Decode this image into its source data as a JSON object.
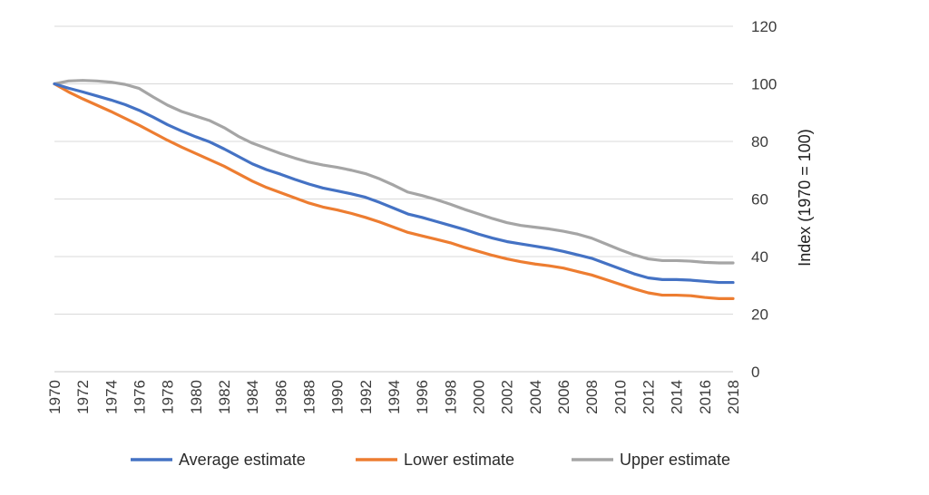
{
  "chart_data": {
    "type": "line",
    "title": "",
    "xlabel": "",
    "ylabel": "Index (1970 = 100)",
    "xlim": [
      1970,
      2018
    ],
    "ylim": [
      0,
      120
    ],
    "y_ticks": [
      0,
      20,
      40,
      60,
      80,
      100,
      120
    ],
    "x_ticks": [
      "1970",
      "1972",
      "1974",
      "1976",
      "1978",
      "1980",
      "1982",
      "1984",
      "1986",
      "1988",
      "1990",
      "1992",
      "1994",
      "1996",
      "1998",
      "2000",
      "2002",
      "2004",
      "2006",
      "2008",
      "2010",
      "2012",
      "2014",
      "2016",
      "2018"
    ],
    "y_axis_side": "right",
    "grid": "horizontal",
    "legend_position": "bottom",
    "x": [
      1970,
      1971,
      1972,
      1973,
      1974,
      1975,
      1976,
      1977,
      1978,
      1979,
      1980,
      1981,
      1982,
      1983,
      1984,
      1985,
      1986,
      1987,
      1988,
      1989,
      1990,
      1991,
      1992,
      1993,
      1994,
      1995,
      1996,
      1997,
      1998,
      1999,
      2000,
      2001,
      2002,
      2003,
      2004,
      2005,
      2006,
      2007,
      2008,
      2009,
      2010,
      2011,
      2012,
      2013,
      2014,
      2015,
      2016,
      2017,
      2018
    ],
    "series": [
      {
        "name": "Average estimate",
        "color": "#4472c4",
        "values": [
          100,
          98.5,
          97.2,
          95.8,
          94.4,
          92.8,
          90.8,
          88.4,
          85.8,
          83.6,
          81.6,
          79.8,
          77.4,
          74.8,
          72.2,
          70.2,
          68.6,
          66.8,
          65.2,
          63.8,
          62.8,
          61.8,
          60.6,
          58.8,
          56.8,
          54.8,
          53.6,
          52.2,
          50.8,
          49.4,
          47.8,
          46.4,
          45.2,
          44.4,
          43.6,
          42.8,
          41.8,
          40.6,
          39.4,
          37.6,
          35.8,
          34.0,
          32.6,
          32.0,
          32.0,
          31.8,
          31.4,
          31.0,
          31.0
        ]
      },
      {
        "name": "Lower estimate",
        "color": "#ed7d31",
        "values": [
          100,
          97.2,
          94.8,
          92.6,
          90.4,
          88.0,
          85.6,
          83.0,
          80.4,
          78.0,
          75.8,
          73.6,
          71.4,
          68.8,
          66.2,
          64.0,
          62.2,
          60.4,
          58.6,
          57.2,
          56.2,
          55.0,
          53.6,
          52.0,
          50.2,
          48.4,
          47.2,
          46.0,
          44.8,
          43.2,
          41.8,
          40.4,
          39.2,
          38.2,
          37.4,
          36.8,
          36.0,
          34.8,
          33.6,
          32.0,
          30.4,
          28.8,
          27.4,
          26.6,
          26.6,
          26.4,
          25.8,
          25.4,
          25.4
        ]
      },
      {
        "name": "Upper estimate",
        "color": "#a5a5a5",
        "values": [
          100,
          101.0,
          101.2,
          101.0,
          100.6,
          99.8,
          98.4,
          95.4,
          92.6,
          90.4,
          88.8,
          87.2,
          84.8,
          81.8,
          79.4,
          77.6,
          75.8,
          74.2,
          72.8,
          71.8,
          71.0,
          70.0,
          68.8,
          67.0,
          64.8,
          62.4,
          61.2,
          59.8,
          58.2,
          56.4,
          54.8,
          53.2,
          51.8,
          50.8,
          50.2,
          49.6,
          48.8,
          47.8,
          46.4,
          44.4,
          42.4,
          40.6,
          39.2,
          38.6,
          38.6,
          38.4,
          38.0,
          37.8,
          37.8
        ]
      }
    ]
  }
}
